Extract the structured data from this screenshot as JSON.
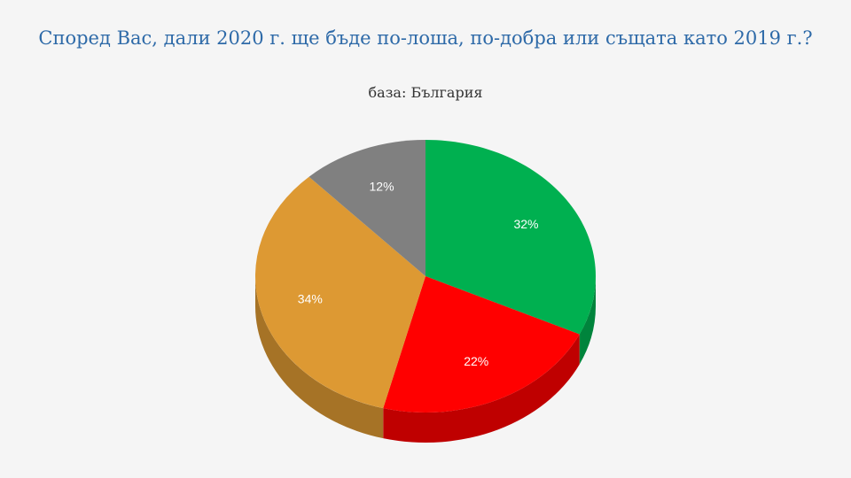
{
  "chart_data": {
    "type": "pie3d",
    "title": "Според Вас, дали 2020 г. ще бъде по-лоша, по-добра или същата като 2019 г.?",
    "subtitle": "база: България",
    "values": [
      32,
      22,
      34,
      12
    ],
    "value_labels": [
      "32%",
      "22%",
      "34%",
      "12%"
    ],
    "colors": [
      "#00b050",
      "#ff0000",
      "#dd9933",
      "#808080"
    ]
  }
}
